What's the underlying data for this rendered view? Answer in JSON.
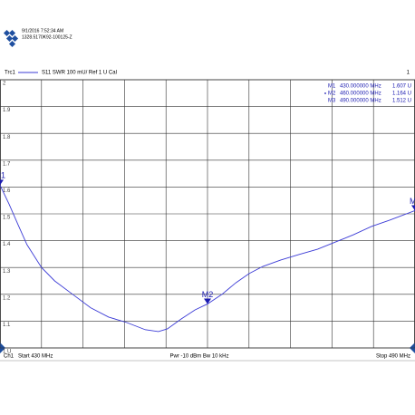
{
  "chart_data": {
    "type": "line",
    "timestamp": "9/1/2016 7:52:34 AM",
    "instrument_id": "1328.5170K92-100125-Z",
    "trace": "Trc1",
    "trace_desc": "S11  SWR  100 mU/ Ref 1 U  Cal",
    "channel_number": "1",
    "channel": "Ch1",
    "start_label": "Start  430 MHz",
    "power_label": "Pwr  -10 dBm  Bw  10 kHz",
    "stop_label": "Stop  490 MHz",
    "xlim": [
      430,
      490
    ],
    "xticks": [
      430,
      436,
      442,
      448,
      454,
      460,
      466,
      472,
      478,
      484,
      490
    ],
    "ylim": [
      1,
      2
    ],
    "yticks": [
      {
        "value": 1,
        "label": "1 U"
      },
      1.1,
      1.2,
      1.3,
      1.4,
      1.5,
      1.6,
      1.7,
      1.8,
      1.9,
      2
    ],
    "grid": true,
    "series": [
      {
        "name": "S11",
        "color": "#3b3bd6",
        "x": [
          430,
          431.3,
          432.6,
          433.9,
          436,
          437.9,
          440.5,
          443.1,
          445.7,
          448.3,
          451,
          452.9,
          454.2,
          456.2,
          458.2,
          460,
          462.1,
          464.1,
          466,
          468,
          470.6,
          473.2,
          475.9,
          478.5,
          481.1,
          483.7,
          486.3,
          490
        ],
        "values": [
          1.607,
          1.537,
          1.46,
          1.385,
          1.3,
          1.25,
          1.2,
          1.15,
          1.115,
          1.095,
          1.068,
          1.061,
          1.071,
          1.108,
          1.142,
          1.164,
          1.2,
          1.243,
          1.277,
          1.304,
          1.328,
          1.348,
          1.368,
          1.395,
          1.422,
          1.453,
          1.476,
          1.512
        ]
      }
    ],
    "markers": [
      {
        "name": "M1",
        "x": 430,
        "y": 1.607,
        "x_label": "430.000000  MHz",
        "y_label": "1.607  U"
      },
      {
        "name": "M2",
        "x": 460,
        "y": 1.164,
        "x_label": "460.000000  MHz",
        "y_label": "1.164  U"
      },
      {
        "name": "M3",
        "x": 490,
        "y": 1.512,
        "x_label": "490.000000  MHz",
        "y_label": "1.512  U"
      }
    ],
    "active_marker": "M2"
  }
}
